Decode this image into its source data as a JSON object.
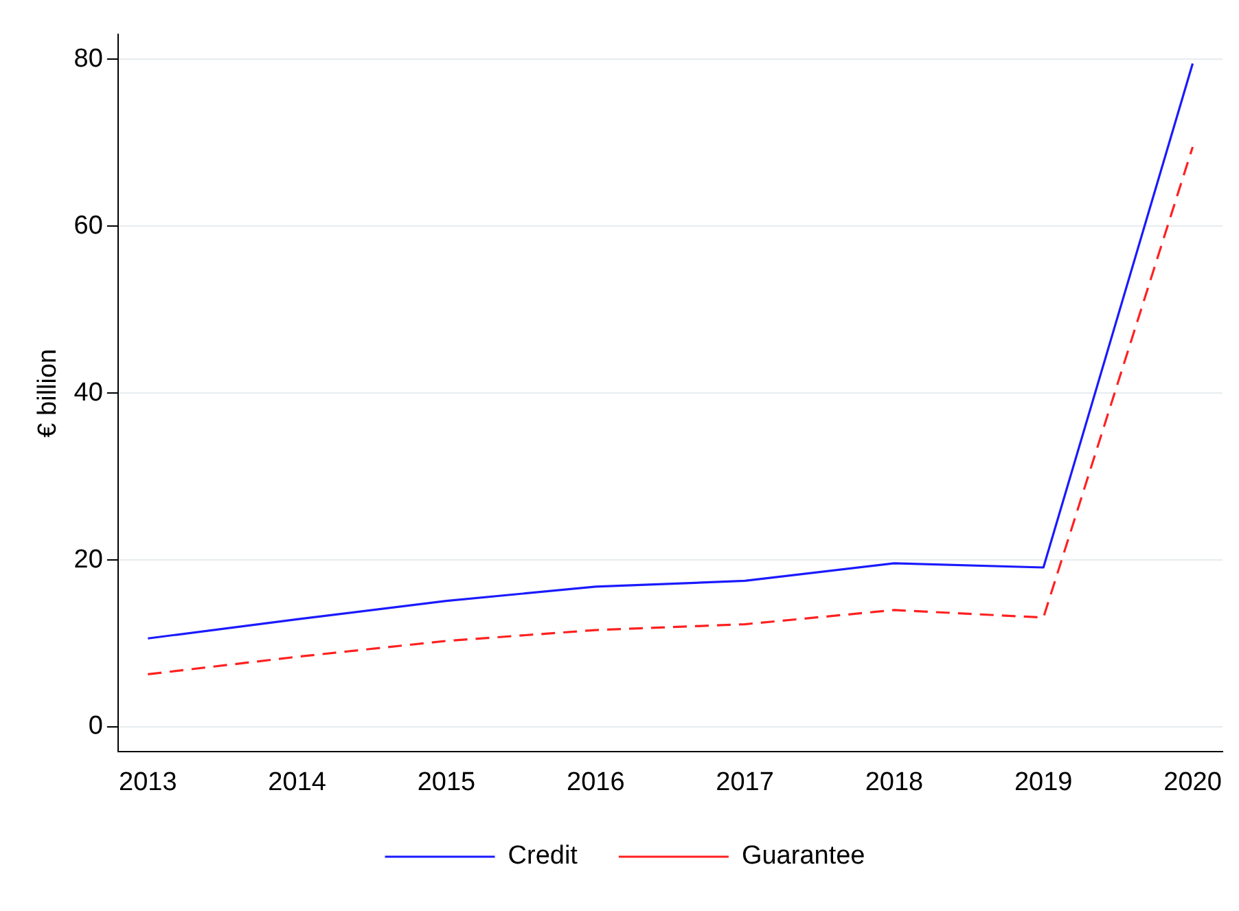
{
  "chart_data": {
    "type": "line",
    "ylabel": "€ billion",
    "x": [
      2013,
      2014,
      2015,
      2016,
      2017,
      2018,
      2019,
      2020
    ],
    "series": [
      {
        "name": "Credit",
        "color": "#1a1aff",
        "line_style": "solid",
        "values": [
          10.6,
          12.9,
          15.1,
          16.8,
          17.5,
          19.6,
          19.1,
          79.5
        ]
      },
      {
        "name": "Guarantee",
        "color": "#ff2020",
        "line_style": "dashed",
        "values": [
          6.3,
          8.4,
          10.3,
          11.6,
          12.3,
          14.0,
          13.1,
          69.5
        ]
      }
    ],
    "xlim": [
      2012.8,
      2020.2
    ],
    "xticks": [
      2013,
      2014,
      2015,
      2016,
      2017,
      2018,
      2019,
      2020
    ],
    "ylim": [
      -3,
      83
    ],
    "yticks": [
      0,
      20,
      40,
      60,
      80
    ],
    "grid": "y",
    "legend": "bottom",
    "marker": "none"
  }
}
